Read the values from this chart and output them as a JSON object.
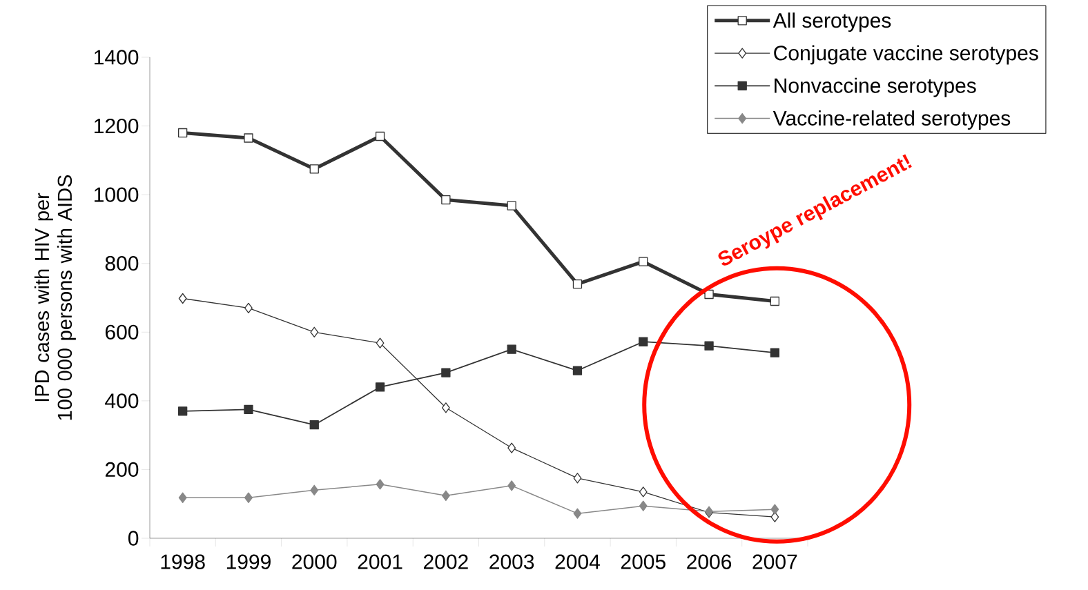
{
  "chart_data": {
    "type": "line",
    "ylabel": "IPD cases with HIV per 100 000 persons with AIDS",
    "categories": [
      "1998",
      "1999",
      "2000",
      "2001",
      "2002",
      "2003",
      "2004",
      "2005",
      "2006",
      "2007"
    ],
    "series": [
      {
        "name": "All serotypes",
        "color": "#333333",
        "marker": "square",
        "values": [
          1180,
          1165,
          1075,
          1170,
          985,
          968,
          740,
          805,
          710,
          690
        ]
      },
      {
        "name": "Conjugate vaccine serotypes",
        "color": "#333333",
        "marker": "diamond",
        "values": [
          698,
          670,
          600,
          568,
          380,
          263,
          175,
          135,
          75,
          62
        ]
      },
      {
        "name": "Nonvaccine serotypes",
        "color": "#333333",
        "marker": "square",
        "values": [
          370,
          375,
          330,
          440,
          482,
          550,
          488,
          572,
          560,
          540
        ]
      },
      {
        "name": "Vaccine-related serotypes",
        "color": "#888888",
        "marker": "diamond",
        "values": [
          118,
          118,
          140,
          157,
          124,
          153,
          72,
          94,
          78,
          84
        ]
      }
    ],
    "ylim": [
      0,
      1400
    ],
    "yticks": [
      0,
      200,
      400,
      600,
      800,
      1000,
      1200,
      1400
    ],
    "legend": "top right",
    "grid": false,
    "annotations": [
      "Seroype replacement!"
    ]
  }
}
